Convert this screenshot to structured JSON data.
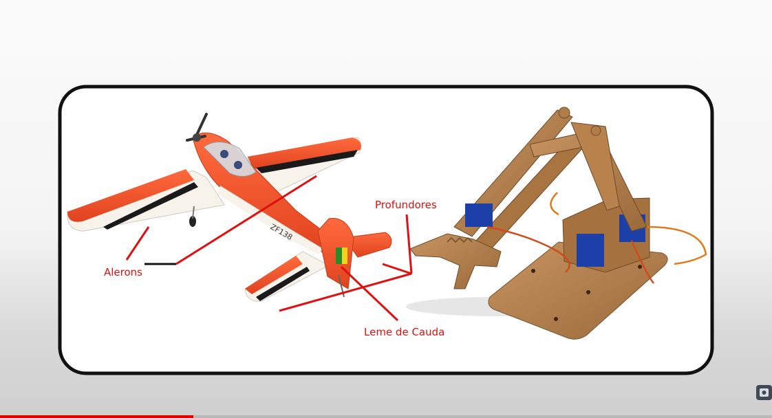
{
  "labels": {
    "alerons": "Alerons",
    "profundores": "Profundores",
    "leme_de_cauda": "Leme de Cauda"
  },
  "colors": {
    "annotation": "#e01010",
    "frame_border": "#111111",
    "airplane_body": "#f0502b",
    "airplane_white": "#f7f2ea",
    "wood": "#b07c48",
    "servo_blue": "#1c3fa8"
  },
  "video": {
    "progress_fraction": 0.25
  },
  "icons": {
    "channel_badge": "channel-logo-icon"
  }
}
